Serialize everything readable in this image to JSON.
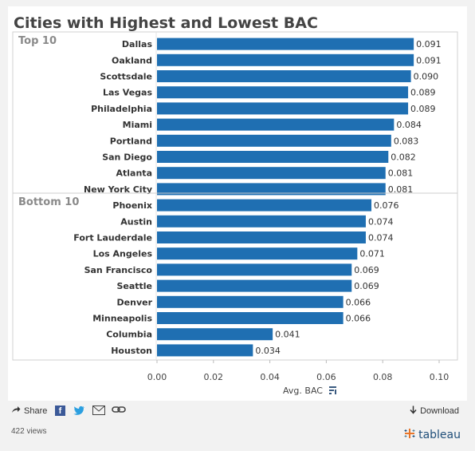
{
  "chart_data": {
    "type": "bar",
    "orientation": "horizontal",
    "title": "Cities with Highest and Lowest BAC",
    "xlabel": "Avg. BAC",
    "xlim": [
      0,
      0.1
    ],
    "xticks": [
      "0.00",
      "0.02",
      "0.04",
      "0.06",
      "0.08",
      "0.10"
    ],
    "groups": [
      {
        "label": "Top 10",
        "categories": [
          "Dallas",
          "Oakland",
          "Scottsdale",
          "Las Vegas",
          "Philadelphia",
          "Miami",
          "Portland",
          "San Diego",
          "Atlanta",
          "New York City"
        ],
        "values": [
          0.091,
          0.091,
          0.09,
          0.089,
          0.089,
          0.084,
          0.083,
          0.082,
          0.081,
          0.081
        ]
      },
      {
        "label": "Bottom 10",
        "categories": [
          "Phoenix",
          "Austin",
          "Fort Lauderdale",
          "Los Angeles",
          "San Francisco",
          "Seattle",
          "Denver",
          "Minneapolis",
          "Columbia",
          "Houston"
        ],
        "values": [
          0.076,
          0.074,
          0.074,
          0.071,
          0.069,
          0.069,
          0.066,
          0.066,
          0.041,
          0.034
        ]
      }
    ],
    "bar_color": "#1f6fb2",
    "grid": false
  },
  "toolbar": {
    "share_label": "Share",
    "download_label": "Download"
  },
  "footer": {
    "views": "422 views",
    "brand": "+tableau"
  },
  "icons": {
    "share": "share-arrow-icon",
    "facebook": "facebook-icon",
    "twitter": "twitter-icon",
    "email": "email-icon",
    "link": "link-icon",
    "download": "download-arrow-icon",
    "sort": "sort-icon"
  }
}
